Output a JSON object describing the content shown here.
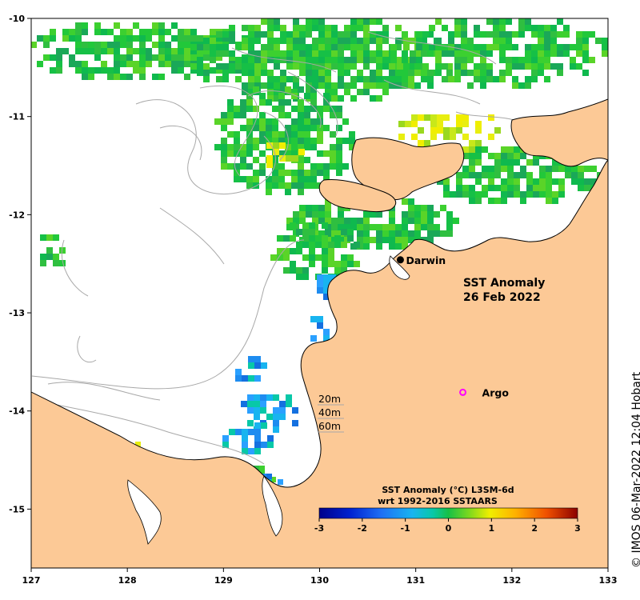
{
  "map": {
    "title_line1": "SST Anomaly",
    "title_line2": "26 Feb 2022",
    "x_ticks": [
      "127",
      "128",
      "129",
      "130",
      "131",
      "132",
      "133"
    ],
    "y_ticks": [
      "-10",
      "-11",
      "-12",
      "-13",
      "-14",
      "-15"
    ],
    "lon_range": [
      127,
      133
    ],
    "lat_range": [
      -15.6,
      -10
    ],
    "places": [
      {
        "name": "Darwin",
        "lon": 130.84,
        "lat": -12.46,
        "marker": "dot"
      },
      {
        "name": "Argo",
        "lon": 131.49,
        "lat": -13.81,
        "marker": "ring"
      }
    ],
    "contour_legend": [
      "20m",
      "40m",
      "60m"
    ],
    "colorbar": {
      "title_line1": "SST Anomaly (°C) L3SM-6d",
      "title_line2": "wrt 1992-2016 SSTAARS",
      "ticks": [
        "-3",
        "-2",
        "-1",
        "0",
        "1",
        "2",
        "3"
      ],
      "range": [
        -3,
        3
      ]
    },
    "credit": "© IMOS 06-Mar-2022 12:04 Hobart",
    "colors": {
      "land": "#fcc996",
      "coast": "#000000",
      "contour": "#a8a8a8",
      "argo_marker": "#ff00ff",
      "ocean": "#ffffff"
    }
  }
}
